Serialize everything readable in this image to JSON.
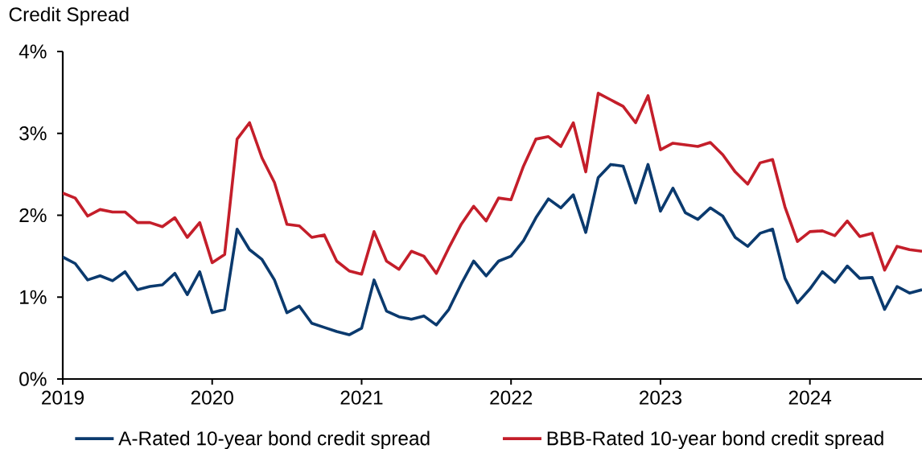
{
  "chart_data": {
    "type": "line",
    "ylabel": "Credit Spread",
    "x": [
      "2019-01",
      "2019-02",
      "2019-03",
      "2019-04",
      "2019-05",
      "2019-06",
      "2019-07",
      "2019-08",
      "2019-09",
      "2019-10",
      "2019-11",
      "2019-12",
      "2020-01",
      "2020-02",
      "2020-03",
      "2020-04",
      "2020-05",
      "2020-06",
      "2020-07",
      "2020-08",
      "2020-09",
      "2020-10",
      "2020-11",
      "2020-12",
      "2021-01",
      "2021-02",
      "2021-03",
      "2021-04",
      "2021-05",
      "2021-06",
      "2021-07",
      "2021-08",
      "2021-09",
      "2021-10",
      "2021-11",
      "2021-12",
      "2022-01",
      "2022-02",
      "2022-03",
      "2022-04",
      "2022-05",
      "2022-06",
      "2022-07",
      "2022-08",
      "2022-09",
      "2022-10",
      "2022-11",
      "2022-12",
      "2023-01",
      "2023-02",
      "2023-03",
      "2023-04",
      "2023-05",
      "2023-06",
      "2023-07",
      "2023-08",
      "2023-09",
      "2023-10",
      "2023-11",
      "2023-12",
      "2024-01",
      "2024-02",
      "2024-03",
      "2024-04",
      "2024-05",
      "2024-06",
      "2024-07",
      "2024-08",
      "2024-09",
      "2024-10"
    ],
    "series": [
      {
        "name": "A-Rated 10-year bond credit spread",
        "color": "#0b3a6e",
        "values": [
          1.49,
          1.41,
          1.21,
          1.26,
          1.2,
          1.31,
          1.09,
          1.13,
          1.15,
          1.29,
          1.03,
          1.31,
          0.81,
          0.85,
          1.83,
          1.58,
          1.46,
          1.21,
          0.81,
          0.89,
          0.68,
          0.63,
          0.58,
          0.54,
          0.62,
          1.21,
          0.83,
          0.76,
          0.73,
          0.77,
          0.66,
          0.85,
          1.16,
          1.44,
          1.26,
          1.44,
          1.5,
          1.69,
          1.97,
          2.2,
          2.09,
          2.25,
          1.79,
          2.46,
          2.62,
          2.6,
          2.15,
          2.62,
          2.05,
          2.33,
          2.03,
          1.95,
          2.09,
          1.99,
          1.73,
          1.62,
          1.78,
          1.83,
          1.23,
          0.93,
          1.1,
          1.31,
          1.18,
          1.38,
          1.23,
          1.24,
          0.85,
          1.13,
          1.05,
          1.09
        ]
      },
      {
        "name": "BBB-Rated 10-year bond credit spread",
        "color": "#c41e2a",
        "values": [
          2.27,
          2.21,
          1.99,
          2.07,
          2.04,
          2.04,
          1.91,
          1.91,
          1.86,
          1.97,
          1.73,
          1.91,
          1.42,
          1.52,
          2.93,
          3.13,
          2.7,
          2.4,
          1.89,
          1.87,
          1.73,
          1.76,
          1.44,
          1.32,
          1.28,
          1.8,
          1.44,
          1.34,
          1.56,
          1.5,
          1.29,
          1.6,
          1.89,
          2.11,
          1.93,
          2.21,
          2.19,
          2.6,
          2.93,
          2.96,
          2.84,
          3.13,
          2.53,
          3.49,
          3.41,
          3.33,
          3.13,
          3.46,
          2.8,
          2.88,
          2.86,
          2.84,
          2.89,
          2.74,
          2.53,
          2.38,
          2.64,
          2.68,
          2.1,
          1.68,
          1.8,
          1.81,
          1.75,
          1.93,
          1.74,
          1.78,
          1.33,
          1.62,
          1.58,
          1.56
        ]
      }
    ],
    "xlim": [
      "2019-01",
      "2024-10"
    ],
    "xticks": [
      "2019",
      "2020",
      "2021",
      "2022",
      "2023",
      "2024"
    ],
    "ylim": [
      0,
      4
    ],
    "yticks": [
      {
        "value": 0,
        "label": "0%"
      },
      {
        "value": 1,
        "label": "1%"
      },
      {
        "value": 2,
        "label": "2%"
      },
      {
        "value": 3,
        "label": "3%"
      },
      {
        "value": 4,
        "label": "4%"
      }
    ],
    "legend": "bottom"
  }
}
